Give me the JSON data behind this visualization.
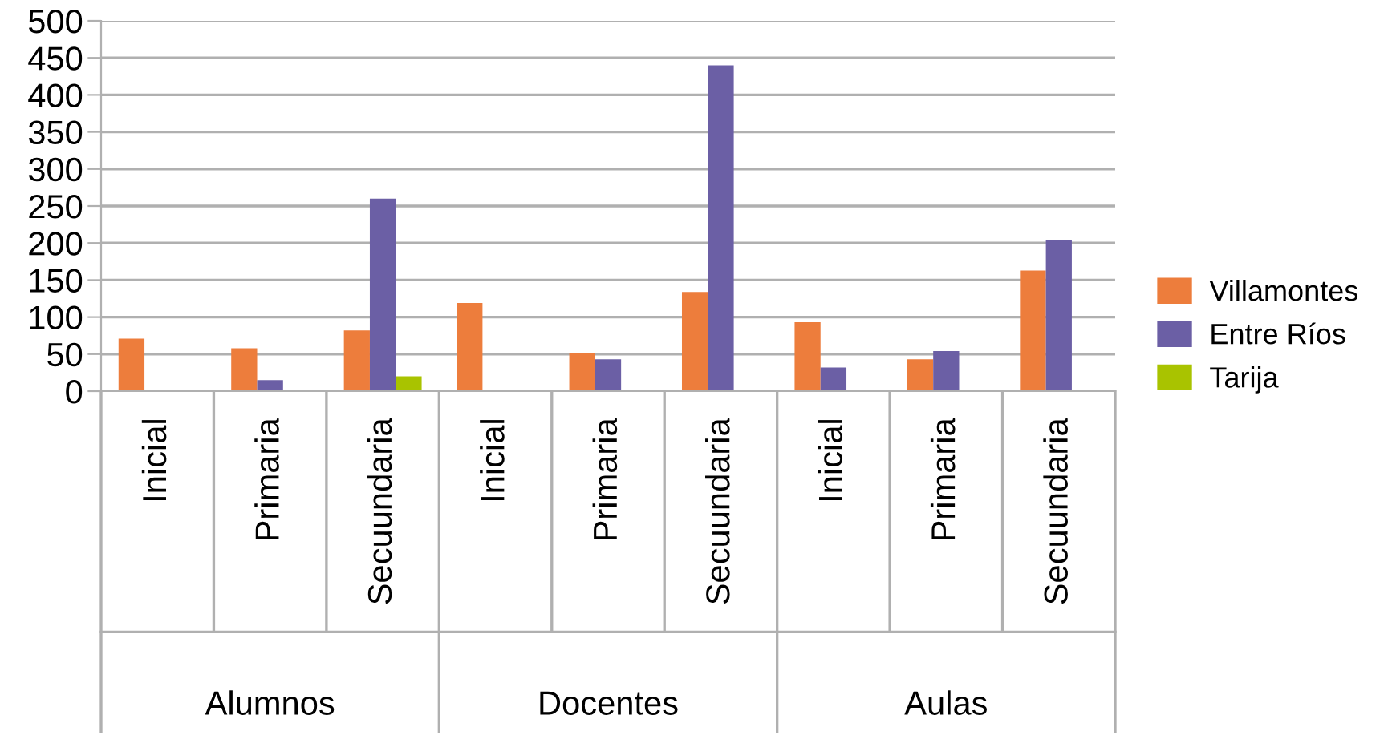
{
  "chart_data": {
    "type": "bar",
    "categories": [
      "Inicial",
      "Primaria",
      "Secuundaria",
      "Inicial",
      "Primaria",
      "Secuundaria",
      "Inicial",
      "Primaria",
      "Secuundaria"
    ],
    "series": [
      {
        "name": "Villamontes",
        "color": "#ed7d3c",
        "values": [
          71,
          58,
          82,
          119,
          52,
          134,
          93,
          43,
          163
        ]
      },
      {
        "name": "Entre Ríos",
        "color": "#6b5fa5",
        "values": [
          null,
          15,
          260,
          null,
          43,
          440,
          32,
          54,
          204
        ]
      },
      {
        "name": "Tarija",
        "color": "#a9c300",
        "values": [
          null,
          null,
          20,
          null,
          null,
          null,
          null,
          null,
          null
        ]
      }
    ],
    "annotations": [
      "Alumnos",
      "Docentes",
      "Aulas"
    ],
    "ylim": [
      0,
      500
    ],
    "yticks": [
      0,
      50,
      100,
      150,
      200,
      250,
      300,
      350,
      400,
      450,
      500
    ],
    "grid": "y",
    "legend": "right"
  }
}
